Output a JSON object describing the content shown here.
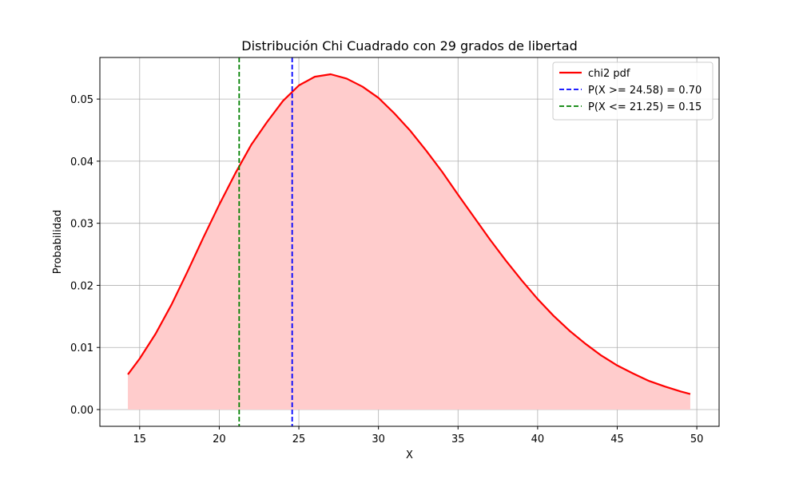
{
  "chart_data": {
    "type": "area",
    "title": "Distribución Chi Cuadrado con 29 grados de libertad",
    "xlabel": "X",
    "ylabel": "Probabilidad",
    "xlim": [
      12.5,
      51.4
    ],
    "ylim": [
      -0.0027,
      0.0567
    ],
    "xticks": [
      15,
      20,
      25,
      30,
      35,
      40,
      45,
      50
    ],
    "xtick_labels": [
      "15",
      "20",
      "25",
      "30",
      "35",
      "40",
      "45",
      "50"
    ],
    "yticks": [
      0.0,
      0.01,
      0.02,
      0.03,
      0.04,
      0.05
    ],
    "ytick_labels": [
      "0.00",
      "0.01",
      "0.02",
      "0.03",
      "0.04",
      "0.05"
    ],
    "grid": true,
    "legend_position": "top-right",
    "series": [
      {
        "name": "chi2 pdf",
        "kind": "line-with-fill",
        "color": "#ff0000",
        "fill_color": "#ffcccc",
        "x": [
          14.26,
          15,
          16,
          17,
          18,
          19,
          20,
          21,
          22,
          23,
          24,
          25,
          26,
          27,
          28,
          29,
          30,
          31,
          32,
          33,
          34,
          35,
          36,
          37,
          38,
          39,
          40,
          41,
          42,
          43,
          44,
          45,
          46,
          47,
          48,
          49,
          49.59
        ],
        "y": [
          0.00565,
          0.0082,
          0.0122,
          0.0169,
          0.0222,
          0.0277,
          0.033,
          0.038,
          0.0426,
          0.0463,
          0.0497,
          0.0522,
          0.0536,
          0.054,
          0.0533,
          0.052,
          0.0502,
          0.0477,
          0.0449,
          0.0417,
          0.0383,
          0.0346,
          0.031,
          0.0274,
          0.024,
          0.0208,
          0.0178,
          0.0151,
          0.0127,
          0.0106,
          0.0087,
          0.0071,
          0.0058,
          0.0046,
          0.0037,
          0.0029,
          0.0025
        ]
      }
    ],
    "vlines": [
      {
        "name": "P(X >= 24.58) = 0.70",
        "x": 24.58,
        "color": "#0000ff",
        "style": "dashed"
      },
      {
        "name": "P(X <= 21.25) = 0.15",
        "x": 21.25,
        "color": "#008000",
        "style": "dashed"
      }
    ]
  }
}
